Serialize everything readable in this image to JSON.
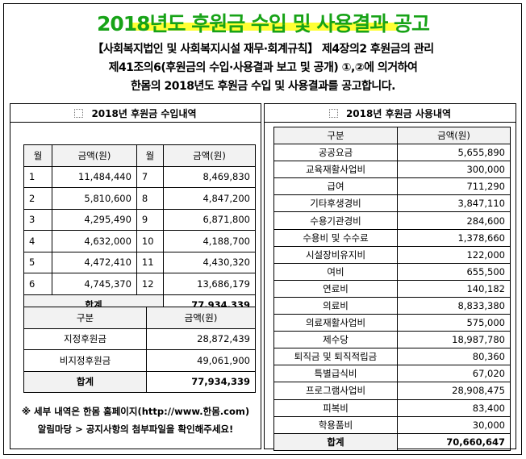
{
  "title": "2018년도 후원금 수입 및 사용결과 공고",
  "intro": {
    "line1": "【사회복지법인 및 사회복지시설 재무·회계규칙】 제4장의2 후원금의 관리",
    "line2": "제41조의6(후원금의 수입·사용결과 보고 및 공개) ①,②에 의거하여",
    "line3": "한몸의 2018년도 후원금 수입 및 사용결과를 공고합니다."
  },
  "income": {
    "title": "2018년 후원금 수입내역",
    "headers": {
      "month": "월",
      "amount": "금액(원)"
    },
    "rows": [
      {
        "m1": "1",
        "a1": "11,484,440",
        "m2": "7",
        "a2": "8,469,830"
      },
      {
        "m1": "2",
        "a1": "5,810,600",
        "m2": "8",
        "a2": "4,847,200"
      },
      {
        "m1": "3",
        "a1": "4,295,490",
        "m2": "9",
        "a2": "6,871,800"
      },
      {
        "m1": "4",
        "a1": "4,632,000",
        "m2": "10",
        "a2": "4,188,700"
      },
      {
        "m1": "5",
        "a1": "4,472,410",
        "m2": "11",
        "a2": "4,430,320"
      },
      {
        "m1": "6",
        "a1": "4,745,370",
        "m2": "12",
        "a2": "13,686,179"
      }
    ],
    "total_label": "합계",
    "total_value": "77,934,339"
  },
  "summary": {
    "headers": {
      "category": "구분",
      "amount": "금액(원)"
    },
    "rows": [
      {
        "label": "지정후원금",
        "value": "28,872,439"
      },
      {
        "label": "비지정후원금",
        "value": "49,061,900"
      }
    ],
    "total_label": "합계",
    "total_value": "77,934,339"
  },
  "footnote": {
    "line1": "※ 세부 내역은 한몸 홈페이지(http://www.한몸.com)",
    "line2": "알림마당 > 공지사항의 첨부파일을 확인해주세요!"
  },
  "expense": {
    "title": "2018년 후원금 사용내역",
    "headers": {
      "category": "구분",
      "amount": "금액(원)"
    },
    "rows": [
      {
        "label": "공공요금",
        "value": "5,655,890"
      },
      {
        "label": "교육재활사업비",
        "value": "300,000"
      },
      {
        "label": "급여",
        "value": "711,290"
      },
      {
        "label": "기타후생경비",
        "value": "3,847,110"
      },
      {
        "label": "수용기관경비",
        "value": "284,600"
      },
      {
        "label": "수용비 및 수수료",
        "value": "1,378,660"
      },
      {
        "label": "시설장비유지비",
        "value": "122,000"
      },
      {
        "label": "여비",
        "value": "655,500"
      },
      {
        "label": "연료비",
        "value": "140,182"
      },
      {
        "label": "의료비",
        "value": "8,833,380"
      },
      {
        "label": "의료재활사업비",
        "value": "575,000"
      },
      {
        "label": "제수당",
        "value": "18,987,780"
      },
      {
        "label": "퇴직금 및 퇴직적립금",
        "value": "80,360"
      },
      {
        "label": "특별급식비",
        "value": "67,020"
      },
      {
        "label": "프로그램사업비",
        "value": "28,908,475"
      },
      {
        "label": "피복비",
        "value": "83,400"
      },
      {
        "label": "학용품비",
        "value": "30,000"
      }
    ],
    "total_label": "합계",
    "total_value": "70,660,647"
  }
}
